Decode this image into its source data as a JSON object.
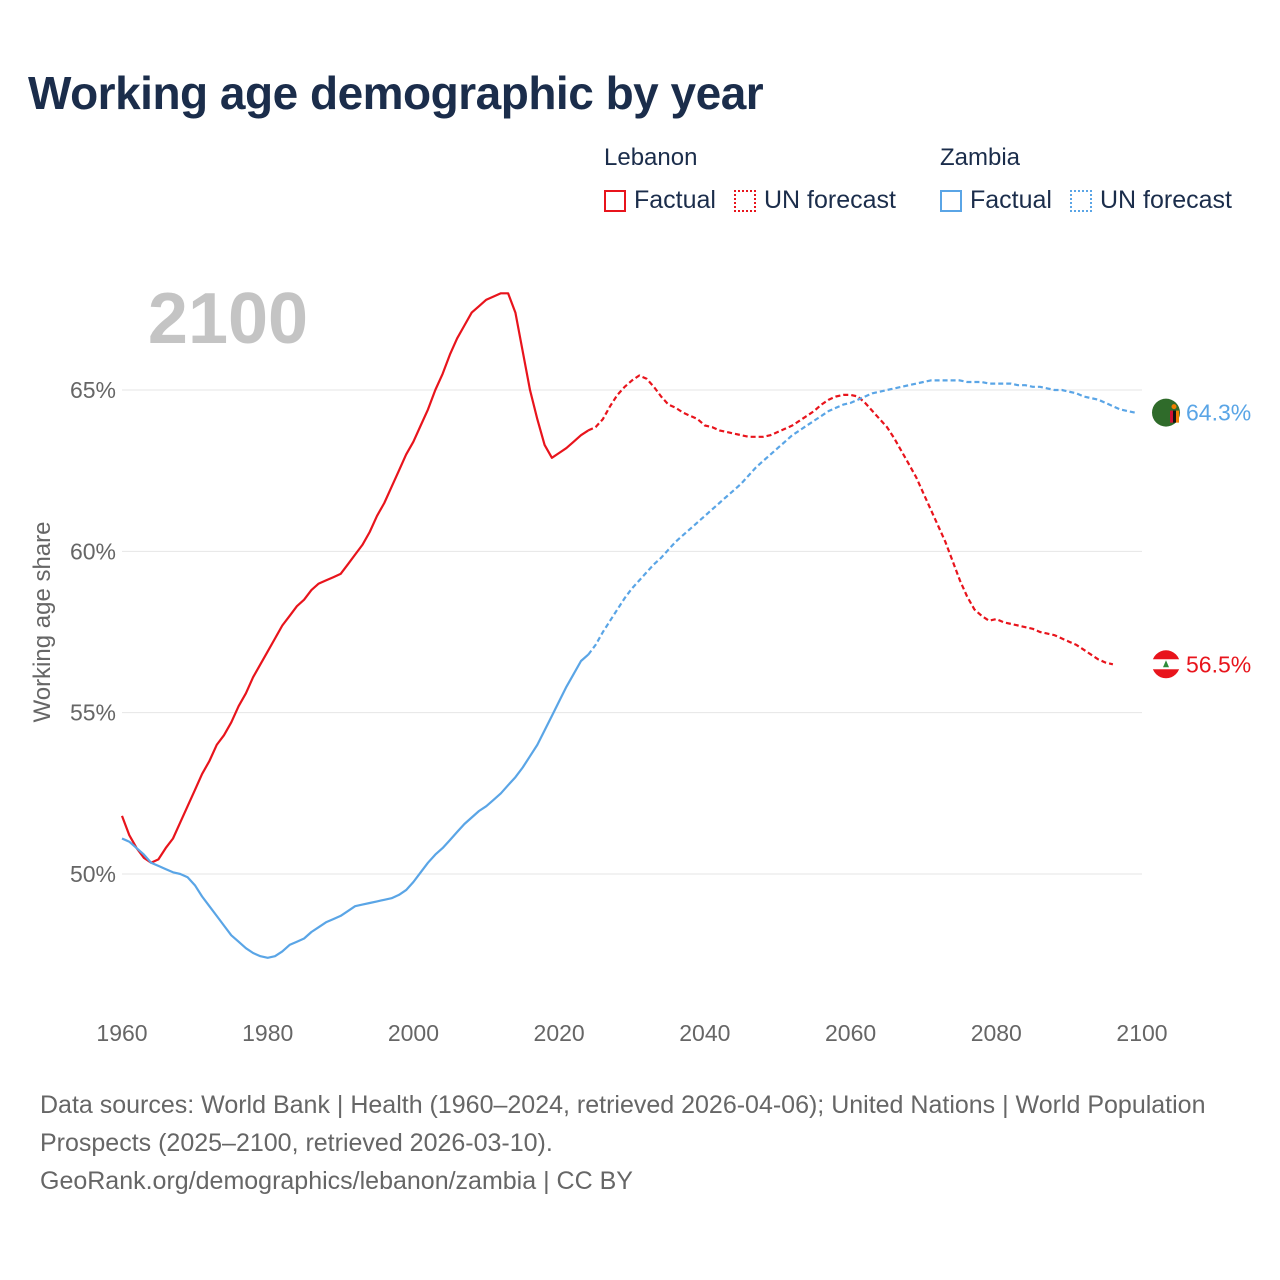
{
  "title": "Working age demographic by year",
  "colors": {
    "title": "#1b2d4b",
    "lebanon": "#e8141c",
    "zambia": "#5aa5e6",
    "grid": "#e6e6e6",
    "axis_text": "#666666",
    "year_watermark": "#c4c4c4"
  },
  "legend": {
    "groups": [
      {
        "country": "Lebanon",
        "factual": "Factual",
        "forecast": "UN forecast",
        "color": "#e8141c"
      },
      {
        "country": "Zambia",
        "factual": "Factual",
        "forecast": "UN forecast",
        "color": "#5aa5e6"
      }
    ]
  },
  "footer": {
    "sources": "Data sources: World Bank | Health (1960–2024, retrieved 2026-04-06); United Nations | World Population Prospects (2025–2100, retrieved 2026-03-10).",
    "url": "GeoRank.org/demographics/lebanon/zambia | CC BY"
  },
  "chart_data": {
    "type": "line",
    "title": "Working age demographic by year",
    "xlabel": "",
    "ylabel": "Working age share",
    "xlim": [
      1960,
      2100
    ],
    "ylim": [
      46,
      69
    ],
    "x_ticks": [
      1960,
      1980,
      2000,
      2020,
      2040,
      2060,
      2080,
      2100
    ],
    "y_ticks": [
      {
        "value": 50,
        "label": "50%"
      },
      {
        "value": 55,
        "label": "55%"
      },
      {
        "value": 60,
        "label": "60%"
      },
      {
        "value": 65,
        "label": "65%"
      }
    ],
    "year_label": "2100",
    "forecast_start": 2024,
    "series": [
      {
        "name": "Lebanon",
        "color": "#e8141c",
        "end_label": "56.5%",
        "points": [
          [
            1960,
            51.8
          ],
          [
            1961,
            51.2
          ],
          [
            1962,
            50.8
          ],
          [
            1963,
            50.5
          ],
          [
            1964,
            50.35
          ],
          [
            1965,
            50.45
          ],
          [
            1966,
            50.8
          ],
          [
            1967,
            51.1
          ],
          [
            1968,
            51.6
          ],
          [
            1969,
            52.1
          ],
          [
            1970,
            52.6
          ],
          [
            1971,
            53.1
          ],
          [
            1972,
            53.5
          ],
          [
            1973,
            54.0
          ],
          [
            1974,
            54.3
          ],
          [
            1975,
            54.7
          ],
          [
            1976,
            55.2
          ],
          [
            1977,
            55.6
          ],
          [
            1978,
            56.1
          ],
          [
            1979,
            56.5
          ],
          [
            1980,
            56.9
          ],
          [
            1981,
            57.3
          ],
          [
            1982,
            57.7
          ],
          [
            1983,
            58.0
          ],
          [
            1984,
            58.3
          ],
          [
            1985,
            58.5
          ],
          [
            1986,
            58.8
          ],
          [
            1987,
            59.0
          ],
          [
            1988,
            59.1
          ],
          [
            1989,
            59.2
          ],
          [
            1990,
            59.3
          ],
          [
            1991,
            59.6
          ],
          [
            1992,
            59.9
          ],
          [
            1993,
            60.2
          ],
          [
            1994,
            60.6
          ],
          [
            1995,
            61.1
          ],
          [
            1996,
            61.5
          ],
          [
            1997,
            62.0
          ],
          [
            1998,
            62.5
          ],
          [
            1999,
            63.0
          ],
          [
            2000,
            63.4
          ],
          [
            2001,
            63.9
          ],
          [
            2002,
            64.4
          ],
          [
            2003,
            65.0
          ],
          [
            2004,
            65.5
          ],
          [
            2005,
            66.1
          ],
          [
            2006,
            66.6
          ],
          [
            2007,
            67.0
          ],
          [
            2008,
            67.4
          ],
          [
            2009,
            67.6
          ],
          [
            2010,
            67.8
          ],
          [
            2011,
            67.9
          ],
          [
            2012,
            68.0
          ],
          [
            2013,
            68.0
          ],
          [
            2014,
            67.4
          ],
          [
            2015,
            66.2
          ],
          [
            2016,
            65.0
          ],
          [
            2017,
            64.1
          ],
          [
            2018,
            63.3
          ],
          [
            2019,
            62.9
          ],
          [
            2020,
            63.05
          ],
          [
            2021,
            63.2
          ],
          [
            2022,
            63.4
          ],
          [
            2023,
            63.6
          ],
          [
            2024,
            63.75
          ],
          [
            2025,
            63.85
          ],
          [
            2026,
            64.1
          ],
          [
            2027,
            64.5
          ],
          [
            2028,
            64.85
          ],
          [
            2029,
            65.1
          ],
          [
            2030,
            65.3
          ],
          [
            2031,
            65.45
          ],
          [
            2032,
            65.35
          ],
          [
            2033,
            65.1
          ],
          [
            2034,
            64.8
          ],
          [
            2035,
            64.55
          ],
          [
            2036,
            64.45
          ],
          [
            2037,
            64.3
          ],
          [
            2038,
            64.2
          ],
          [
            2039,
            64.1
          ],
          [
            2040,
            63.9
          ],
          [
            2041,
            63.85
          ],
          [
            2042,
            63.75
          ],
          [
            2043,
            63.7
          ],
          [
            2044,
            63.65
          ],
          [
            2045,
            63.6
          ],
          [
            2046,
            63.55
          ],
          [
            2047,
            63.55
          ],
          [
            2048,
            63.55
          ],
          [
            2049,
            63.6
          ],
          [
            2050,
            63.7
          ],
          [
            2051,
            63.8
          ],
          [
            2052,
            63.9
          ],
          [
            2053,
            64.05
          ],
          [
            2054,
            64.2
          ],
          [
            2055,
            64.35
          ],
          [
            2056,
            64.55
          ],
          [
            2057,
            64.7
          ],
          [
            2058,
            64.8
          ],
          [
            2059,
            64.85
          ],
          [
            2060,
            64.85
          ],
          [
            2061,
            64.8
          ],
          [
            2062,
            64.6
          ],
          [
            2063,
            64.35
          ],
          [
            2064,
            64.1
          ],
          [
            2065,
            63.85
          ],
          [
            2066,
            63.5
          ],
          [
            2067,
            63.1
          ],
          [
            2068,
            62.7
          ],
          [
            2069,
            62.3
          ],
          [
            2070,
            61.8
          ],
          [
            2071,
            61.3
          ],
          [
            2072,
            60.8
          ],
          [
            2073,
            60.3
          ],
          [
            2074,
            59.7
          ],
          [
            2075,
            59.1
          ],
          [
            2076,
            58.6
          ],
          [
            2077,
            58.2
          ],
          [
            2078,
            58.0
          ],
          [
            2079,
            57.85
          ],
          [
            2080,
            57.9
          ],
          [
            2081,
            57.8
          ],
          [
            2082,
            57.75
          ],
          [
            2083,
            57.7
          ],
          [
            2084,
            57.65
          ],
          [
            2085,
            57.6
          ],
          [
            2086,
            57.5
          ],
          [
            2087,
            57.45
          ],
          [
            2088,
            57.4
          ],
          [
            2089,
            57.3
          ],
          [
            2090,
            57.2
          ],
          [
            2091,
            57.1
          ],
          [
            2092,
            56.95
          ],
          [
            2093,
            56.8
          ],
          [
            2094,
            56.65
          ],
          [
            2095,
            56.55
          ],
          [
            2096,
            56.5
          ]
        ]
      },
      {
        "name": "Zambia",
        "color": "#5aa5e6",
        "end_label": "64.3%",
        "points": [
          [
            1960,
            51.1
          ],
          [
            1961,
            51.0
          ],
          [
            1962,
            50.8
          ],
          [
            1963,
            50.6
          ],
          [
            1964,
            50.35
          ],
          [
            1965,
            50.25
          ],
          [
            1966,
            50.15
          ],
          [
            1967,
            50.05
          ],
          [
            1968,
            50.0
          ],
          [
            1969,
            49.9
          ],
          [
            1970,
            49.65
          ],
          [
            1971,
            49.3
          ],
          [
            1972,
            49.0
          ],
          [
            1973,
            48.7
          ],
          [
            1974,
            48.4
          ],
          [
            1975,
            48.1
          ],
          [
            1976,
            47.9
          ],
          [
            1977,
            47.7
          ],
          [
            1978,
            47.55
          ],
          [
            1979,
            47.45
          ],
          [
            1980,
            47.4
          ],
          [
            1981,
            47.45
          ],
          [
            1982,
            47.6
          ],
          [
            1983,
            47.8
          ],
          [
            1984,
            47.9
          ],
          [
            1985,
            48.0
          ],
          [
            1986,
            48.2
          ],
          [
            1987,
            48.35
          ],
          [
            1988,
            48.5
          ],
          [
            1989,
            48.6
          ],
          [
            1990,
            48.7
          ],
          [
            1991,
            48.85
          ],
          [
            1992,
            49.0
          ],
          [
            1993,
            49.05
          ],
          [
            1994,
            49.1
          ],
          [
            1995,
            49.15
          ],
          [
            1996,
            49.2
          ],
          [
            1997,
            49.25
          ],
          [
            1998,
            49.35
          ],
          [
            1999,
            49.5
          ],
          [
            2000,
            49.75
          ],
          [
            2001,
            50.05
          ],
          [
            2002,
            50.35
          ],
          [
            2003,
            50.6
          ],
          [
            2004,
            50.8
          ],
          [
            2005,
            51.05
          ],
          [
            2006,
            51.3
          ],
          [
            2007,
            51.55
          ],
          [
            2008,
            51.75
          ],
          [
            2009,
            51.95
          ],
          [
            2010,
            52.1
          ],
          [
            2011,
            52.3
          ],
          [
            2012,
            52.5
          ],
          [
            2013,
            52.75
          ],
          [
            2014,
            53.0
          ],
          [
            2015,
            53.3
          ],
          [
            2016,
            53.65
          ],
          [
            2017,
            54.0
          ],
          [
            2018,
            54.45
          ],
          [
            2019,
            54.9
          ],
          [
            2020,
            55.35
          ],
          [
            2021,
            55.8
          ],
          [
            2022,
            56.2
          ],
          [
            2023,
            56.6
          ],
          [
            2024,
            56.8
          ],
          [
            2025,
            57.1
          ],
          [
            2026,
            57.5
          ],
          [
            2027,
            57.85
          ],
          [
            2028,
            58.2
          ],
          [
            2029,
            58.55
          ],
          [
            2030,
            58.85
          ],
          [
            2031,
            59.1
          ],
          [
            2032,
            59.35
          ],
          [
            2033,
            59.6
          ],
          [
            2034,
            59.8
          ],
          [
            2035,
            60.05
          ],
          [
            2036,
            60.3
          ],
          [
            2037,
            60.5
          ],
          [
            2038,
            60.7
          ],
          [
            2039,
            60.9
          ],
          [
            2040,
            61.1
          ],
          [
            2041,
            61.3
          ],
          [
            2042,
            61.5
          ],
          [
            2043,
            61.7
          ],
          [
            2044,
            61.9
          ],
          [
            2045,
            62.1
          ],
          [
            2046,
            62.35
          ],
          [
            2047,
            62.6
          ],
          [
            2048,
            62.8
          ],
          [
            2049,
            63.0
          ],
          [
            2050,
            63.2
          ],
          [
            2051,
            63.4
          ],
          [
            2052,
            63.6
          ],
          [
            2053,
            63.75
          ],
          [
            2054,
            63.9
          ],
          [
            2055,
            64.05
          ],
          [
            2056,
            64.2
          ],
          [
            2057,
            64.35
          ],
          [
            2058,
            64.45
          ],
          [
            2059,
            64.55
          ],
          [
            2060,
            64.6
          ],
          [
            2061,
            64.7
          ],
          [
            2062,
            64.8
          ],
          [
            2063,
            64.9
          ],
          [
            2064,
            64.95
          ],
          [
            2065,
            65.0
          ],
          [
            2066,
            65.05
          ],
          [
            2067,
            65.1
          ],
          [
            2068,
            65.15
          ],
          [
            2069,
            65.2
          ],
          [
            2070,
            65.25
          ],
          [
            2071,
            65.3
          ],
          [
            2072,
            65.3
          ],
          [
            2073,
            65.3
          ],
          [
            2074,
            65.3
          ],
          [
            2075,
            65.3
          ],
          [
            2076,
            65.25
          ],
          [
            2077,
            65.25
          ],
          [
            2078,
            65.25
          ],
          [
            2079,
            65.2
          ],
          [
            2080,
            65.2
          ],
          [
            2081,
            65.2
          ],
          [
            2082,
            65.2
          ],
          [
            2083,
            65.15
          ],
          [
            2084,
            65.15
          ],
          [
            2085,
            65.1
          ],
          [
            2086,
            65.1
          ],
          [
            2087,
            65.05
          ],
          [
            2088,
            65.0
          ],
          [
            2089,
            65.0
          ],
          [
            2090,
            64.95
          ],
          [
            2091,
            64.9
          ],
          [
            2092,
            64.8
          ],
          [
            2093,
            64.75
          ],
          [
            2094,
            64.7
          ],
          [
            2095,
            64.6
          ],
          [
            2096,
            64.5
          ],
          [
            2097,
            64.4
          ],
          [
            2098,
            64.35
          ],
          [
            2099,
            64.3
          ]
        ]
      }
    ]
  }
}
